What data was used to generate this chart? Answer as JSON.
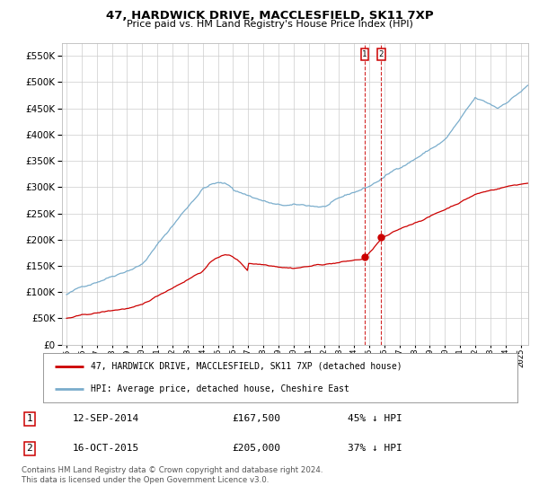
{
  "title": "47, HARDWICK DRIVE, MACCLESFIELD, SK11 7XP",
  "subtitle": "Price paid vs. HM Land Registry's House Price Index (HPI)",
  "legend_label1": "47, HARDWICK DRIVE, MACCLESFIELD, SK11 7XP (detached house)",
  "legend_label2": "HPI: Average price, detached house, Cheshire East",
  "annotation1_date": "12-SEP-2014",
  "annotation1_price": "£167,500",
  "annotation1_hpi": "45% ↓ HPI",
  "annotation2_date": "16-OCT-2015",
  "annotation2_price": "£205,000",
  "annotation2_hpi": "37% ↓ HPI",
  "sale1_year": 2014.7,
  "sale1_price": 167500,
  "sale2_year": 2015.79,
  "sale2_price": 205000,
  "footer": "Contains HM Land Registry data © Crown copyright and database right 2024.\nThis data is licensed under the Open Government Licence v3.0.",
  "line1_color": "#cc0000",
  "line2_color": "#7aadcc",
  "dashed_color": "#cc0000",
  "background_color": "#ffffff",
  "grid_color": "#cccccc",
  "ylim_max": 575000,
  "xlim_start": 1994.7,
  "xlim_end": 2025.5
}
